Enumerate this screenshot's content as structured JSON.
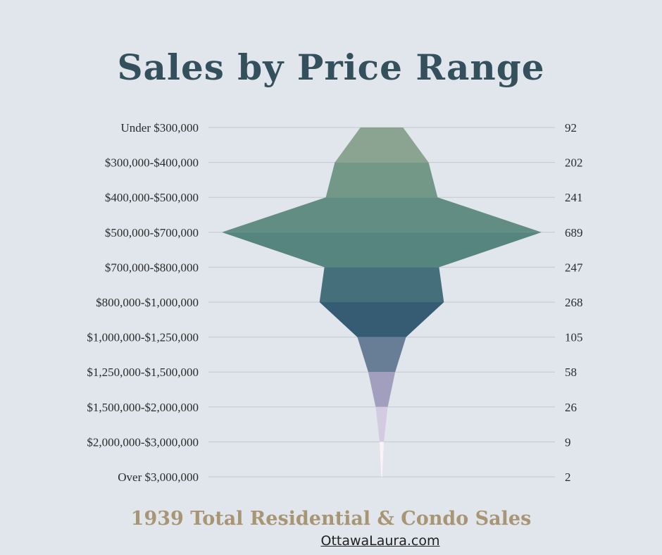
{
  "title": "Sales by Price Range",
  "footer": {
    "total_text": "1939 Total Residential & Condo Sales",
    "website": "OttawaLaura.com"
  },
  "chart_data": {
    "type": "funnel",
    "categories": [
      "Under $300,000",
      "$300,000-$400,000",
      "$400,000-$500,000",
      "$500,000-$700,000",
      "$700,000-$800,000",
      "$800,000-$1,000,000",
      "$1,000,000-$1,250,000",
      "$1,250,000-$1,500,000",
      "$1,500,000-$2,000,000",
      "$2,000,000-$3,000,000",
      "Over $3,000,000"
    ],
    "values": [
      92,
      202,
      241,
      689,
      247,
      268,
      105,
      58,
      26,
      9,
      2
    ],
    "colors": [
      "#8aa491",
      "#739887",
      "#628d83",
      "#56847f",
      "#456f7a",
      "#355c73",
      "#687e97",
      "#a19fbd",
      "#d3cce0",
      "#fbf1f9",
      "#c6c0d2"
    ],
    "grid": true
  }
}
